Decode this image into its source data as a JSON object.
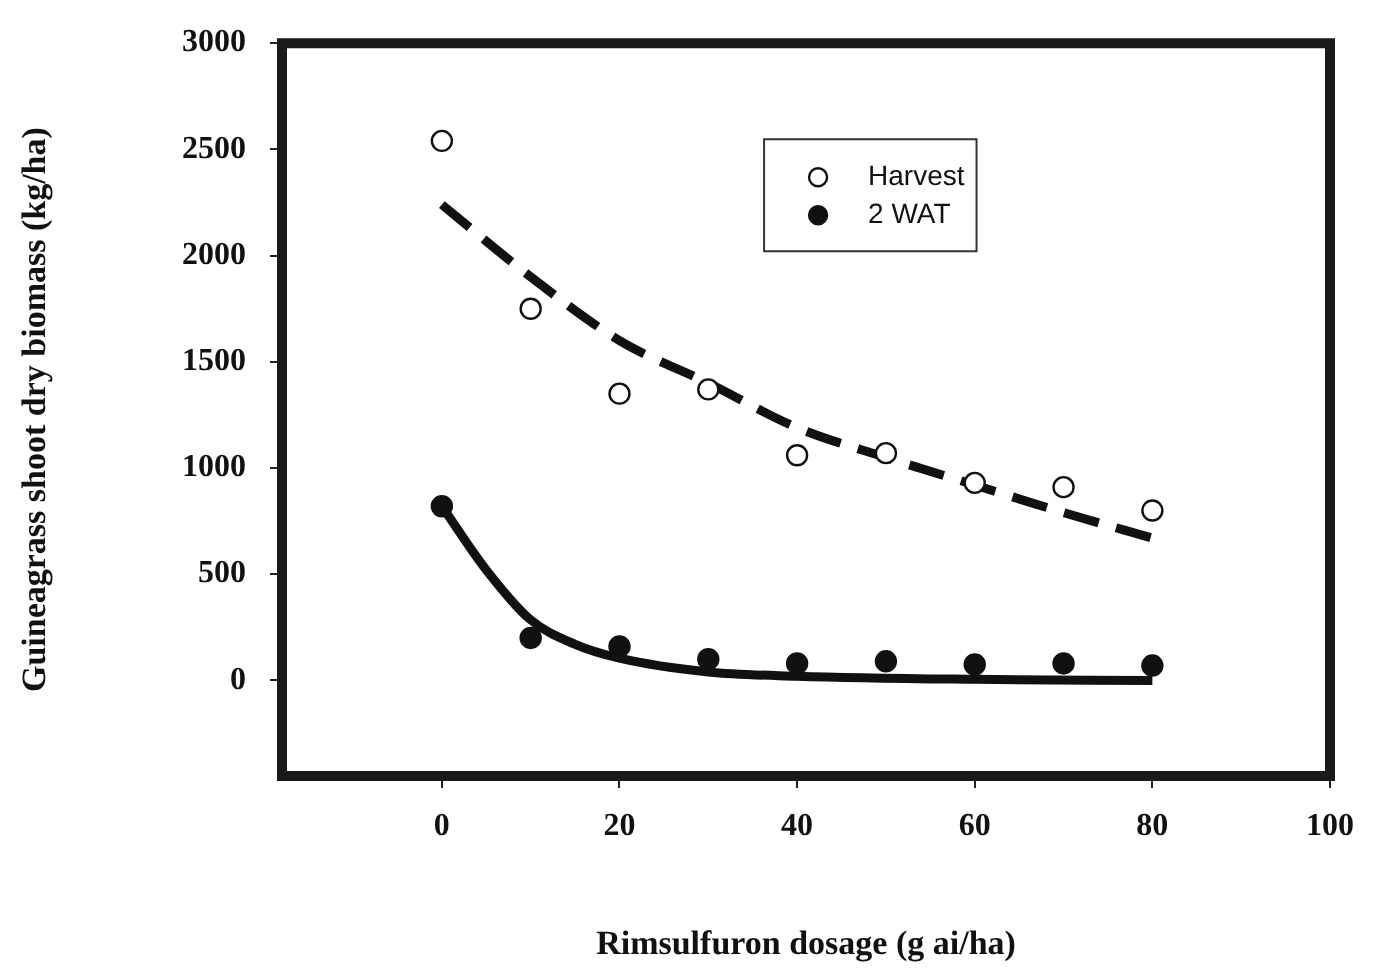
{
  "chart_data": {
    "type": "scatter",
    "xlabel": "Rimsulfuron dosage (g ai/ha)",
    "ylabel": "Guineagrass shoot dry biomass (kg/ha)",
    "xlim": [
      -18,
      100
    ],
    "xticks": [
      0,
      20,
      40,
      60,
      80,
      100
    ],
    "ylim": [
      -450,
      3000
    ],
    "yticks": [
      0,
      500,
      1000,
      1500,
      2000,
      2500,
      3000
    ],
    "grid": false,
    "legend": "top",
    "marker": "circle",
    "series": [
      {
        "name": "Harvest",
        "color": "#ffffff",
        "x": [
          0,
          10,
          20,
          30,
          40,
          50,
          60,
          70,
          80
        ],
        "values": [
          2540,
          1750,
          1350,
          1370,
          1060,
          1070,
          930,
          910,
          800
        ]
      },
      {
        "name": "2 WAT",
        "color": "#111111",
        "x": [
          0,
          10,
          20,
          30,
          40,
          50,
          60,
          70,
          80
        ],
        "values": [
          820,
          200,
          160,
          100,
          80,
          90,
          75,
          80,
          70
        ]
      },
      {
        "type": "line",
        "color": "#111111",
        "line_style": "dashed",
        "marker": "none",
        "x": [
          0,
          10,
          20,
          30,
          40,
          50,
          60,
          70,
          80
        ],
        "values": [
          2240,
          1900,
          1600,
          1400,
          1190,
          1050,
          920,
          790,
          670
        ]
      },
      {
        "type": "line",
        "color": "#111111",
        "line_style": "solid",
        "marker": "none",
        "x": [
          0,
          5,
          10,
          15,
          20,
          30,
          40,
          60,
          80
        ],
        "values": [
          820,
          520,
          285,
          170,
          105,
          40,
          20,
          5,
          0
        ]
      }
    ]
  }
}
